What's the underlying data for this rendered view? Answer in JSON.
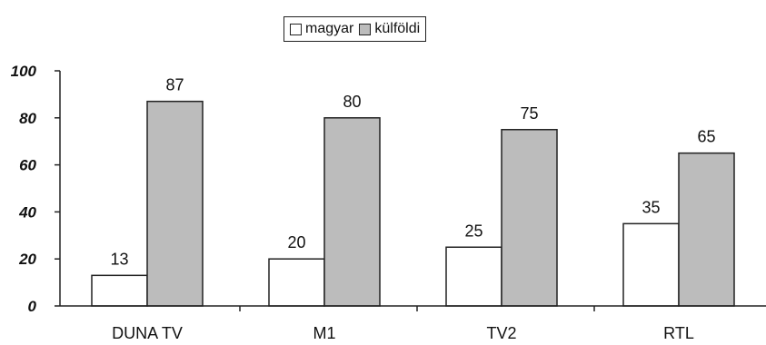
{
  "colors": {
    "magyar": "#ffffff",
    "kulfoldi": "#bcbcbc",
    "stroke": "#222222"
  },
  "chart_data": {
    "type": "bar",
    "categories": [
      "DUNA TV",
      "M1",
      "TV2",
      "RTL"
    ],
    "series": [
      {
        "name": "magyar",
        "values": [
          13,
          20,
          25,
          35
        ]
      },
      {
        "name": "külföldi",
        "values": [
          87,
          80,
          75,
          65
        ]
      }
    ],
    "title": "",
    "xlabel": "",
    "ylabel": "",
    "ylim": [
      0,
      100
    ],
    "yticks": [
      "0",
      "20",
      "40",
      "60",
      "80",
      "100"
    ],
    "grid": false,
    "legend_position": "top-center",
    "data_labels": true
  }
}
